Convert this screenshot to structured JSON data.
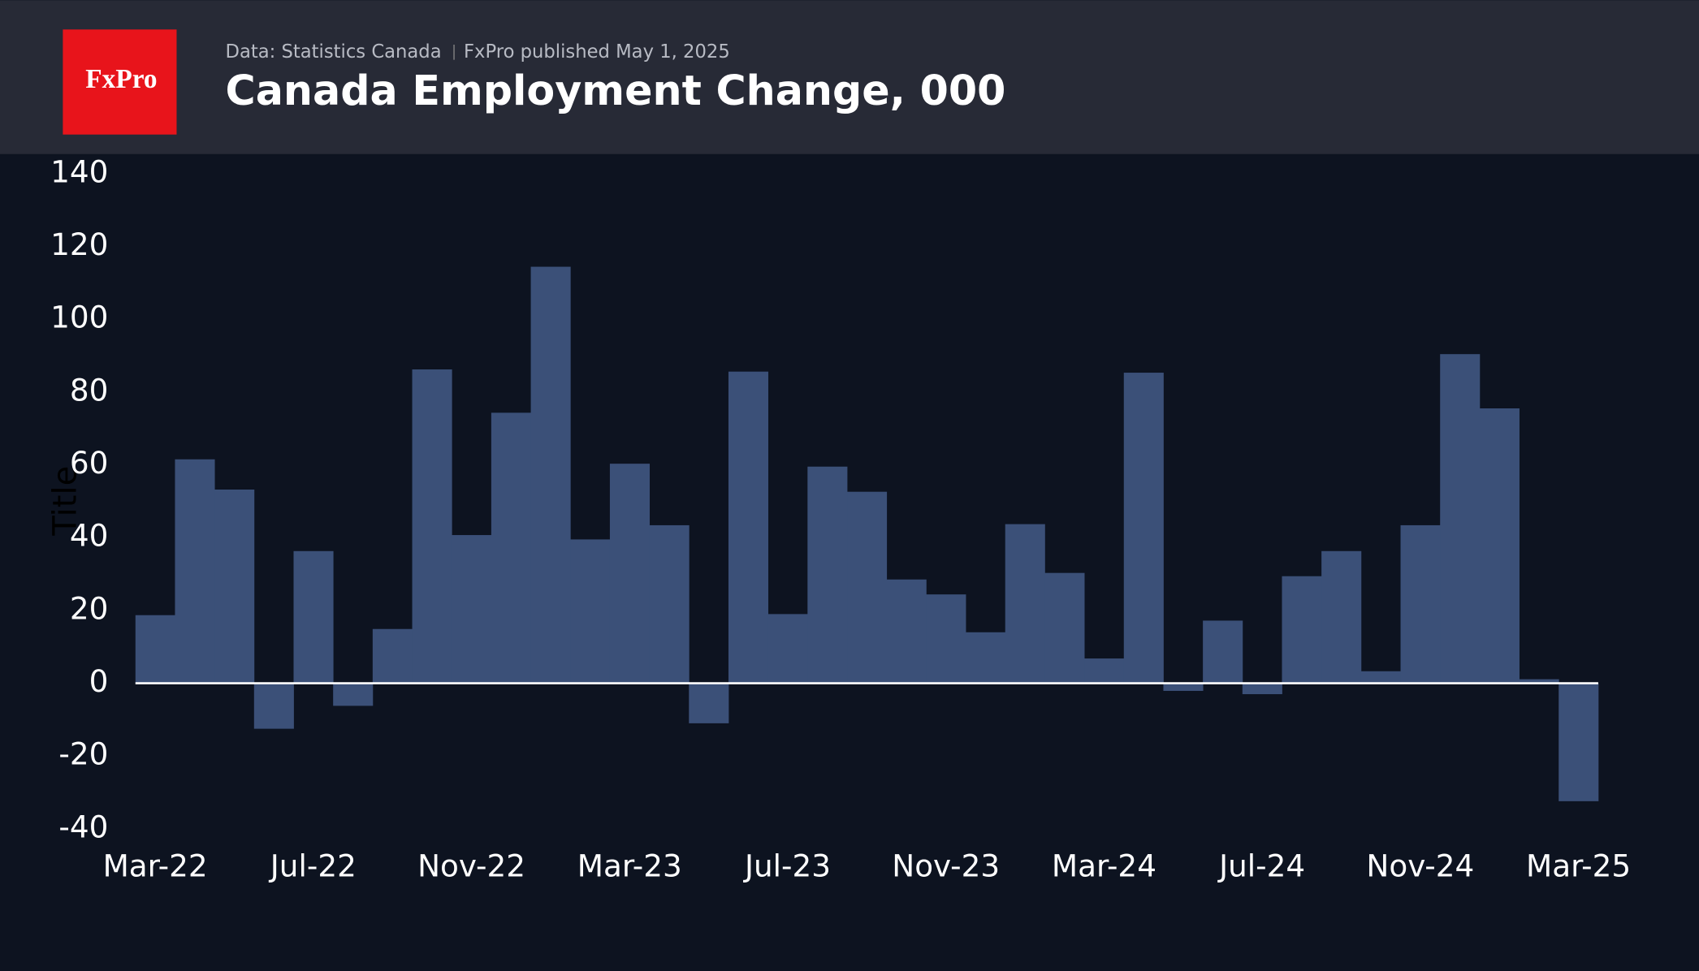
{
  "chart_data": {
    "type": "bar",
    "logo": "FxPro",
    "source": "Data: Statistics Canada",
    "published": "FxPro published May 1, 2025",
    "title": "Canada Employment Change, 000",
    "y_label": "Title",
    "categories": [
      "Mar-22",
      null,
      null,
      null,
      "Jul-22",
      null,
      null,
      null,
      "Nov-22",
      null,
      null,
      null,
      "Mar-23",
      null,
      null,
      null,
      "Jul-23",
      null,
      null,
      null,
      "Nov-23",
      null,
      null,
      null,
      "Mar-24",
      null,
      null,
      null,
      "Jul-24",
      null,
      null,
      null,
      "Nov-24",
      null,
      null,
      null,
      "Mar-25"
    ],
    "values": [
      18.7,
      61.5,
      53.2,
      -12.5,
      36.3,
      -6.2,
      14.9,
      86.2,
      40.7,
      74.3,
      114.4,
      39.5,
      60.3,
      43.4,
      -11,
      85.6,
      19,
      59.5,
      52.6,
      28.5,
      24.4,
      14,
      43.7,
      30.3,
      6.8,
      85.3,
      -2.1,
      17.2,
      -3,
      29.4,
      36.3,
      3.3,
      43.4,
      90.4,
      75.5,
      1.1,
      -32.4
    ],
    "color": "#3b5078",
    "ylim": [
      -40,
      140
    ],
    "yticks": [
      -40,
      -20,
      0,
      20,
      40,
      60,
      80,
      100,
      120,
      140
    ],
    "grid": false
  }
}
